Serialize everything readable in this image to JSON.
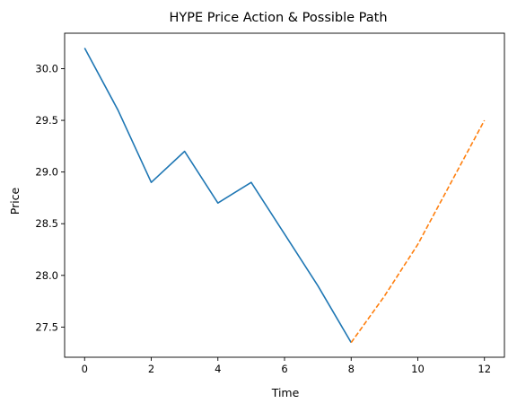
{
  "chart_data": {
    "type": "line",
    "title": "HYPE Price Action & Possible Path",
    "xlabel": "Time",
    "ylabel": "Price",
    "xlim": [
      -0.6,
      12.6
    ],
    "ylim": [
      27.208,
      30.343
    ],
    "x_ticks": [
      0,
      2,
      4,
      6,
      8,
      10,
      12
    ],
    "x_tick_labels": [
      "0",
      "2",
      "4",
      "6",
      "8",
      "10",
      "12"
    ],
    "y_ticks": [
      27.5,
      28.0,
      28.5,
      29.0,
      29.5,
      30.0
    ],
    "y_tick_labels": [
      "27.5",
      "28.0",
      "28.5",
      "29.0",
      "29.5",
      "30.0"
    ],
    "grid": false,
    "legend": "none",
    "series": [
      {
        "color": "#1f77b4",
        "style": "solid",
        "x": [
          0,
          1,
          2,
          3,
          4,
          5,
          6,
          7,
          8
        ],
        "y": [
          30.2,
          29.6,
          28.9,
          29.2,
          28.7,
          28.9,
          28.4,
          27.9,
          27.35
        ]
      },
      {
        "color": "#ff7f0e",
        "style": "dashed",
        "x": [
          8,
          9,
          10,
          11,
          12
        ],
        "y": [
          27.35,
          27.8,
          28.3,
          28.9,
          29.5
        ]
      }
    ]
  }
}
